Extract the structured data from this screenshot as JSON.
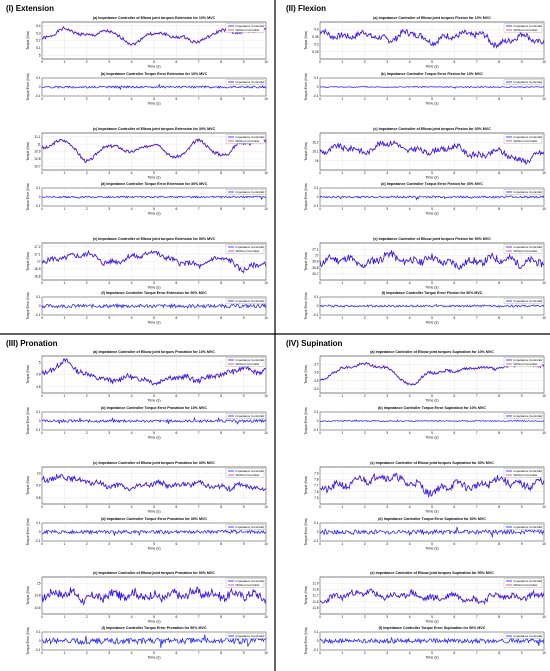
{
  "quadrants": [
    {
      "label": "(I) Extension",
      "motion": "Extension"
    },
    {
      "label": "(II) Flexion",
      "motion": "Flexion"
    },
    {
      "label": "(III) Pronation",
      "motion": "Pronation"
    },
    {
      "label": "(IV) Supination",
      "motion": "Supination"
    }
  ],
  "colors": {
    "impedance": "#1a1aff",
    "without": "#e0306a",
    "frame": "#000000"
  },
  "legend": {
    "impedance": "Impedance Controller",
    "without": "Without Controller"
  },
  "common": {
    "xlabel": "Time (s)",
    "torque_ylabel": "Torque (Nm)",
    "error_ylabel": "Torque Error (Nm)"
  },
  "chart_data": [
    {
      "type": "line",
      "id": "I-a",
      "title": "(a) Impedance Controller of Elbow joint torques Extension for 10% MVC",
      "xlabel": "Time (s)",
      "ylabel": "Torque (Nm)",
      "xlim": [
        0,
        10
      ],
      "ylim": [
        4.95,
        5.45
      ],
      "yticks": [
        "5",
        "5.1",
        "5.2",
        "5.3",
        "5.4"
      ],
      "series": [
        {
          "name": "Impedance Controller"
        },
        {
          "name": "Without Controller"
        }
      ],
      "base": [
        5.22,
        5.35,
        5.27,
        5.32,
        5.16,
        5.3,
        5.25,
        5.19,
        5.33,
        5.31,
        5.35
      ],
      "noise": 0.02,
      "seed": 1
    },
    {
      "type": "line",
      "id": "I-b",
      "title": "(b) Impedance Controller Torque Error Extension for 10% MVC",
      "xlabel": "Time (s)",
      "ylabel": "Torque Error (Nm)",
      "xlim": [
        0,
        10
      ],
      "ylim": [
        -0.1,
        0.1
      ],
      "yticks": [
        "-0.1",
        "0",
        "0.1"
      ],
      "series": [
        {
          "name": "Impedance Controller"
        }
      ],
      "noise": 0.012,
      "seed": 2
    },
    {
      "type": "line",
      "id": "I-c",
      "title": "(c) Impedance Controller of Elbow joint torques Extension for 30% MVC",
      "xlabel": "Time (s)",
      "ylabel": "Torque (Nm)",
      "xlim": [
        0,
        10
      ],
      "ylim": [
        10.65,
        11.15
      ],
      "yticks": [
        "10.7",
        "10.8",
        "10.9",
        "11",
        "11.1"
      ],
      "series": [
        {
          "name": "Impedance Controller"
        },
        {
          "name": "Without Controller"
        }
      ],
      "base": [
        10.95,
        11.05,
        10.78,
        10.98,
        10.9,
        11.0,
        10.82,
        11.04,
        10.85,
        11.02,
        11.04
      ],
      "noise": 0.02,
      "seed": 3
    },
    {
      "type": "line",
      "id": "I-d",
      "title": "(d) Impedance Controller Torque Error Extension for 30% MVC",
      "xlabel": "Time (s)",
      "ylabel": "Torque Error (Nm)",
      "xlim": [
        0,
        10
      ],
      "ylim": [
        -0.1,
        0.1
      ],
      "yticks": [
        "-0.1",
        "0",
        "0.1"
      ],
      "series": [
        {
          "name": "Impedance Controller"
        }
      ],
      "noise": 0.01,
      "seed": 4
    },
    {
      "type": "line",
      "id": "I-e",
      "title": "(e) Impedance Controller of Elbow joint torques Extension for 50% MVC",
      "xlabel": "Time (s)",
      "ylabel": "Torque (Nm)",
      "xlim": [
        0,
        10
      ],
      "ylim": [
        16.75,
        17.25
      ],
      "yticks": [
        "16.8",
        "16.9",
        "17",
        "17.1",
        "17.2"
      ],
      "series": [
        {
          "name": "Impedance Controller"
        },
        {
          "name": "Without Controller"
        }
      ],
      "base": [
        17.0,
        17.05,
        17.1,
        16.98,
        17.06,
        17.12,
        17.0,
        16.95,
        17.05,
        16.9,
        16.98
      ],
      "noise": 0.035,
      "seed": 5
    },
    {
      "type": "line",
      "id": "I-f",
      "title": "(f) Impedance Controller Torque Error Extension for 50% MVC",
      "xlabel": "Time (s)",
      "ylabel": "Torque Error (Nm)",
      "xlim": [
        0,
        10
      ],
      "ylim": [
        -0.1,
        0.1
      ],
      "yticks": [
        "-0.1",
        "0",
        "0.1"
      ],
      "series": [
        {
          "name": "Impedance Controller"
        }
      ],
      "noise": 0.02,
      "seed": 6
    },
    {
      "type": "line",
      "id": "II-a",
      "title": "(a) Impedance Controller of Elbow joint torques Flexion for 10% MVC",
      "xlabel": "Time (s)",
      "ylabel": "Torque (Nm)",
      "xlim": [
        0,
        10
      ],
      "ylim": [
        5.2,
        5.45
      ],
      "yticks": [
        "5.25",
        "5.3",
        "5.35",
        "5.4"
      ],
      "series": [
        {
          "name": "Impedance Controller"
        },
        {
          "name": "Without Controller"
        }
      ],
      "base": [
        5.38,
        5.35,
        5.37,
        5.33,
        5.38,
        5.32,
        5.36,
        5.37,
        5.3,
        5.36,
        5.31
      ],
      "noise": 0.02,
      "seed": 7
    },
    {
      "type": "line",
      "id": "II-b",
      "title": "(b) Impedance Controller Torque Error Flexion for 10% MVC",
      "xlabel": "Time (s)",
      "ylabel": "Torque Error (Nm)",
      "xlim": [
        0,
        10
      ],
      "ylim": [
        -0.1,
        0.1
      ],
      "yticks": [
        "-0.1",
        "0",
        "0.1"
      ],
      "series": [
        {
          "name": "Impedance Controller"
        }
      ],
      "noise": 0.006,
      "seed": 8
    },
    {
      "type": "line",
      "id": "II-c",
      "title": "(c) Impedance Controller of Elbow joint torques Flexion for 30% MVC",
      "xlabel": "Time (s)",
      "ylabel": "Torque (Nm)",
      "xlim": [
        0,
        10
      ],
      "ylim": [
        15.9,
        16.3
      ],
      "yticks": [
        "16",
        "16.1",
        "16.2"
      ],
      "series": [
        {
          "name": "Impedance Controller"
        },
        {
          "name": "Without Controller"
        }
      ],
      "base": [
        16.1,
        16.15,
        16.1,
        16.2,
        16.12,
        16.1,
        16.15,
        16.05,
        16.1,
        16.0,
        16.08
      ],
      "noise": 0.03,
      "seed": 9
    },
    {
      "type": "line",
      "id": "II-d",
      "title": "(d) Impedance Controller Torque Error Flexion for 30% MVC",
      "xlabel": "Time (s)",
      "ylabel": "Torque Error (Nm)",
      "xlim": [
        0,
        10
      ],
      "ylim": [
        -0.1,
        0.1
      ],
      "yticks": [
        "-0.1",
        "0",
        "0.1"
      ],
      "series": [
        {
          "name": "Impedance Controller"
        }
      ],
      "noise": 0.012,
      "seed": 10
    },
    {
      "type": "line",
      "id": "II-e",
      "title": "(e) Impedance Controller of Elbow joint torques Flexion for 50% MVC",
      "xlabel": "Time (s)",
      "ylabel": "Torque (Nm)",
      "xlim": [
        0,
        10
      ],
      "ylim": [
        26.6,
        27.2
      ],
      "yticks": [
        "26.7",
        "26.8",
        "26.9",
        "27",
        "27.1"
      ],
      "series": [
        {
          "name": "Impedance Controller"
        },
        {
          "name": "Without Controller"
        }
      ],
      "base": [
        26.9,
        26.95,
        26.85,
        27.0,
        26.9,
        26.95,
        26.85,
        26.9,
        26.95,
        26.88,
        26.9
      ],
      "noise": 0.06,
      "seed": 11
    },
    {
      "type": "line",
      "id": "II-f",
      "title": "(f) Impedance Controller Torque Error Flexion for 50% MVC",
      "xlabel": "Time (s)",
      "ylabel": "Torque Error (Nm)",
      "xlim": [
        0,
        10
      ],
      "ylim": [
        -0.1,
        0.1
      ],
      "yticks": [
        "-0.1",
        "0",
        "0.1"
      ],
      "series": [
        {
          "name": "Impedance Controller"
        }
      ],
      "noise": 0.012,
      "seed": 12
    },
    {
      "type": "line",
      "id": "III-a",
      "title": "(a) Impedance Controller of Elbow joint torques Pronation for 10% MVC",
      "xlabel": "Time (s)",
      "ylabel": "Torque (Nm)",
      "xlim": [
        0,
        10
      ],
      "ylim": [
        4.75,
        5.05
      ],
      "yticks": [
        "4.8",
        "4.9",
        "5"
      ],
      "series": [
        {
          "name": "Impedance Controller"
        },
        {
          "name": "Without Controller"
        }
      ],
      "base": [
        4.9,
        5.0,
        4.9,
        4.85,
        4.88,
        4.84,
        4.88,
        4.86,
        4.9,
        4.95,
        4.92
      ],
      "noise": 0.02,
      "seed": 13
    },
    {
      "type": "line",
      "id": "III-b",
      "title": "(b) Impedance Controller Torque Error Pronation for 10% MVC",
      "xlabel": "Time (s)",
      "ylabel": "Torque Error (Nm)",
      "xlim": [
        0,
        10
      ],
      "ylim": [
        -0.1,
        0.1
      ],
      "yticks": [
        "-0.1",
        "0",
        "0.1"
      ],
      "series": [
        {
          "name": "Impedance Controller"
        }
      ],
      "noise": 0.015,
      "seed": 14
    },
    {
      "type": "line",
      "id": "III-c",
      "title": "(c) Impedance Controller of Elbow joint torques Pronation for 30% MVC",
      "xlabel": "Time (s)",
      "ylabel": "Torque (Nm)",
      "xlim": [
        0,
        10
      ],
      "ylim": [
        9.75,
        10.05
      ],
      "yticks": [
        "9.8",
        "9.9",
        "10"
      ],
      "series": [
        {
          "name": "Impedance Controller"
        },
        {
          "name": "Without Controller"
        }
      ],
      "base": [
        9.95,
        9.97,
        9.93,
        9.9,
        9.88,
        9.92,
        9.9,
        9.92,
        9.88,
        9.9,
        9.87
      ],
      "noise": 0.02,
      "seed": 15
    },
    {
      "type": "line",
      "id": "III-d",
      "title": "(d) Impedance Controller Torque Error Pronation for 30% MVC",
      "xlabel": "Time (s)",
      "ylabel": "Torque Error (Nm)",
      "xlim": [
        0,
        10
      ],
      "ylim": [
        -0.1,
        0.1
      ],
      "yticks": [
        "-0.1",
        "0",
        "0.1"
      ],
      "series": [
        {
          "name": "Impedance Controller"
        }
      ],
      "noise": 0.02,
      "seed": 16
    },
    {
      "type": "line",
      "id": "III-e",
      "title": "(e) Impedance Controller of Elbow joint torques Pronation for 50% MVC",
      "xlabel": "Time (s)",
      "ylabel": "Torque (Nm)",
      "xlim": [
        0,
        10
      ],
      "ylim": [
        14.5,
        15.1
      ],
      "yticks": [
        "14.6",
        "14.8",
        "15"
      ],
      "series": [
        {
          "name": "Impedance Controller"
        },
        {
          "name": "Without Controller"
        }
      ],
      "base": [
        14.8,
        14.85,
        14.75,
        14.8,
        14.82,
        14.78,
        14.8,
        14.85,
        14.8,
        14.82,
        14.78
      ],
      "noise": 0.07,
      "seed": 17
    },
    {
      "type": "line",
      "id": "III-f",
      "title": "(f) Impedance Controller Torque Error Pronation for 50% MVC",
      "xlabel": "Time (s)",
      "ylabel": "Torque Error (Nm)",
      "xlim": [
        0,
        10
      ],
      "ylim": [
        -0.1,
        0.1
      ],
      "yticks": [
        "-0.1",
        "0",
        "0.1"
      ],
      "series": [
        {
          "name": "Impedance Controller"
        }
      ],
      "noise": 0.035,
      "seed": 18
    },
    {
      "type": "line",
      "id": "IV-a",
      "title": "(a) Impedance Controller of Elbow joint torques Supination for 10% MVC",
      "xlabel": "Time (s)",
      "ylabel": "Torque (Nm)",
      "xlim": [
        0,
        10
      ],
      "ylim": [
        3.35,
        3.8
      ],
      "yticks": [
        "3.4",
        "3.5",
        "3.6",
        "3.7"
      ],
      "series": [
        {
          "name": "Impedance Controller"
        },
        {
          "name": "Without Controller"
        }
      ],
      "base": [
        3.5,
        3.65,
        3.7,
        3.65,
        3.45,
        3.6,
        3.62,
        3.66,
        3.65,
        3.7,
        3.68
      ],
      "noise": 0.015,
      "seed": 19
    },
    {
      "type": "line",
      "id": "IV-b",
      "title": "(b) Impedance Controller Torque Error Supination for 10% MVC",
      "xlabel": "Time (s)",
      "ylabel": "Torque Error (Nm)",
      "xlim": [
        0,
        10
      ],
      "ylim": [
        -0.1,
        0.1
      ],
      "yticks": [
        "-0.1",
        "0",
        "0.1"
      ],
      "series": [
        {
          "name": "Impedance Controller"
        }
      ],
      "noise": 0.006,
      "seed": 20
    },
    {
      "type": "line",
      "id": "IV-c",
      "title": "(c) Impedance Controller of Elbow joint torques Supination for 30% MVC",
      "xlabel": "Time (s)",
      "ylabel": "Torque (Nm)",
      "xlim": [
        0,
        10
      ],
      "ylim": [
        7.4,
        8.0
      ],
      "yticks": [
        "7.5",
        "7.6",
        "7.7",
        "7.8",
        "7.9"
      ],
      "series": [
        {
          "name": "Impedance Controller"
        },
        {
          "name": "Without Controller"
        }
      ],
      "base": [
        7.65,
        7.7,
        7.8,
        7.85,
        7.75,
        7.6,
        7.72,
        7.68,
        7.8,
        7.7,
        7.75
      ],
      "noise": 0.06,
      "seed": 21
    },
    {
      "type": "line",
      "id": "IV-d",
      "title": "(d) Impedance Controller Torque Error Supination for 30% MVC",
      "xlabel": "Time (s)",
      "ylabel": "Torque Error (Nm)",
      "xlim": [
        0,
        10
      ],
      "ylim": [
        -0.1,
        0.1
      ],
      "yticks": [
        "-0.1",
        "0",
        "0.1"
      ],
      "series": [
        {
          "name": "Impedance Controller"
        }
      ],
      "noise": 0.025,
      "seed": 22
    },
    {
      "type": "line",
      "id": "IV-e",
      "title": "(e) Impedance Controller of Elbow joint torques Supination for 50% MVC",
      "xlabel": "Time (s)",
      "ylabel": "Torque (Nm)",
      "xlim": [
        0,
        10
      ],
      "ylim": [
        11.4,
        12.0
      ],
      "yticks": [
        "11.5",
        "11.6",
        "11.7",
        "11.8",
        "11.9"
      ],
      "series": [
        {
          "name": "Impedance Controller"
        },
        {
          "name": "Without Controller"
        }
      ],
      "base": [
        11.6,
        11.7,
        11.75,
        11.68,
        11.72,
        11.65,
        11.7,
        11.62,
        11.7,
        11.66,
        11.72
      ],
      "noise": 0.05,
      "seed": 23
    },
    {
      "type": "line",
      "id": "IV-f",
      "title": "(f) Impedance Controller Torque Error Supination for 50% MVC",
      "xlabel": "Time (s)",
      "ylabel": "Torque Error (Nm)",
      "xlim": [
        0,
        10
      ],
      "ylim": [
        -0.1,
        0.1
      ],
      "yticks": [
        "-0.1",
        "0",
        "0.1"
      ],
      "series": [
        {
          "name": "Impedance Controller"
        }
      ],
      "noise": 0.025,
      "seed": 24
    }
  ]
}
